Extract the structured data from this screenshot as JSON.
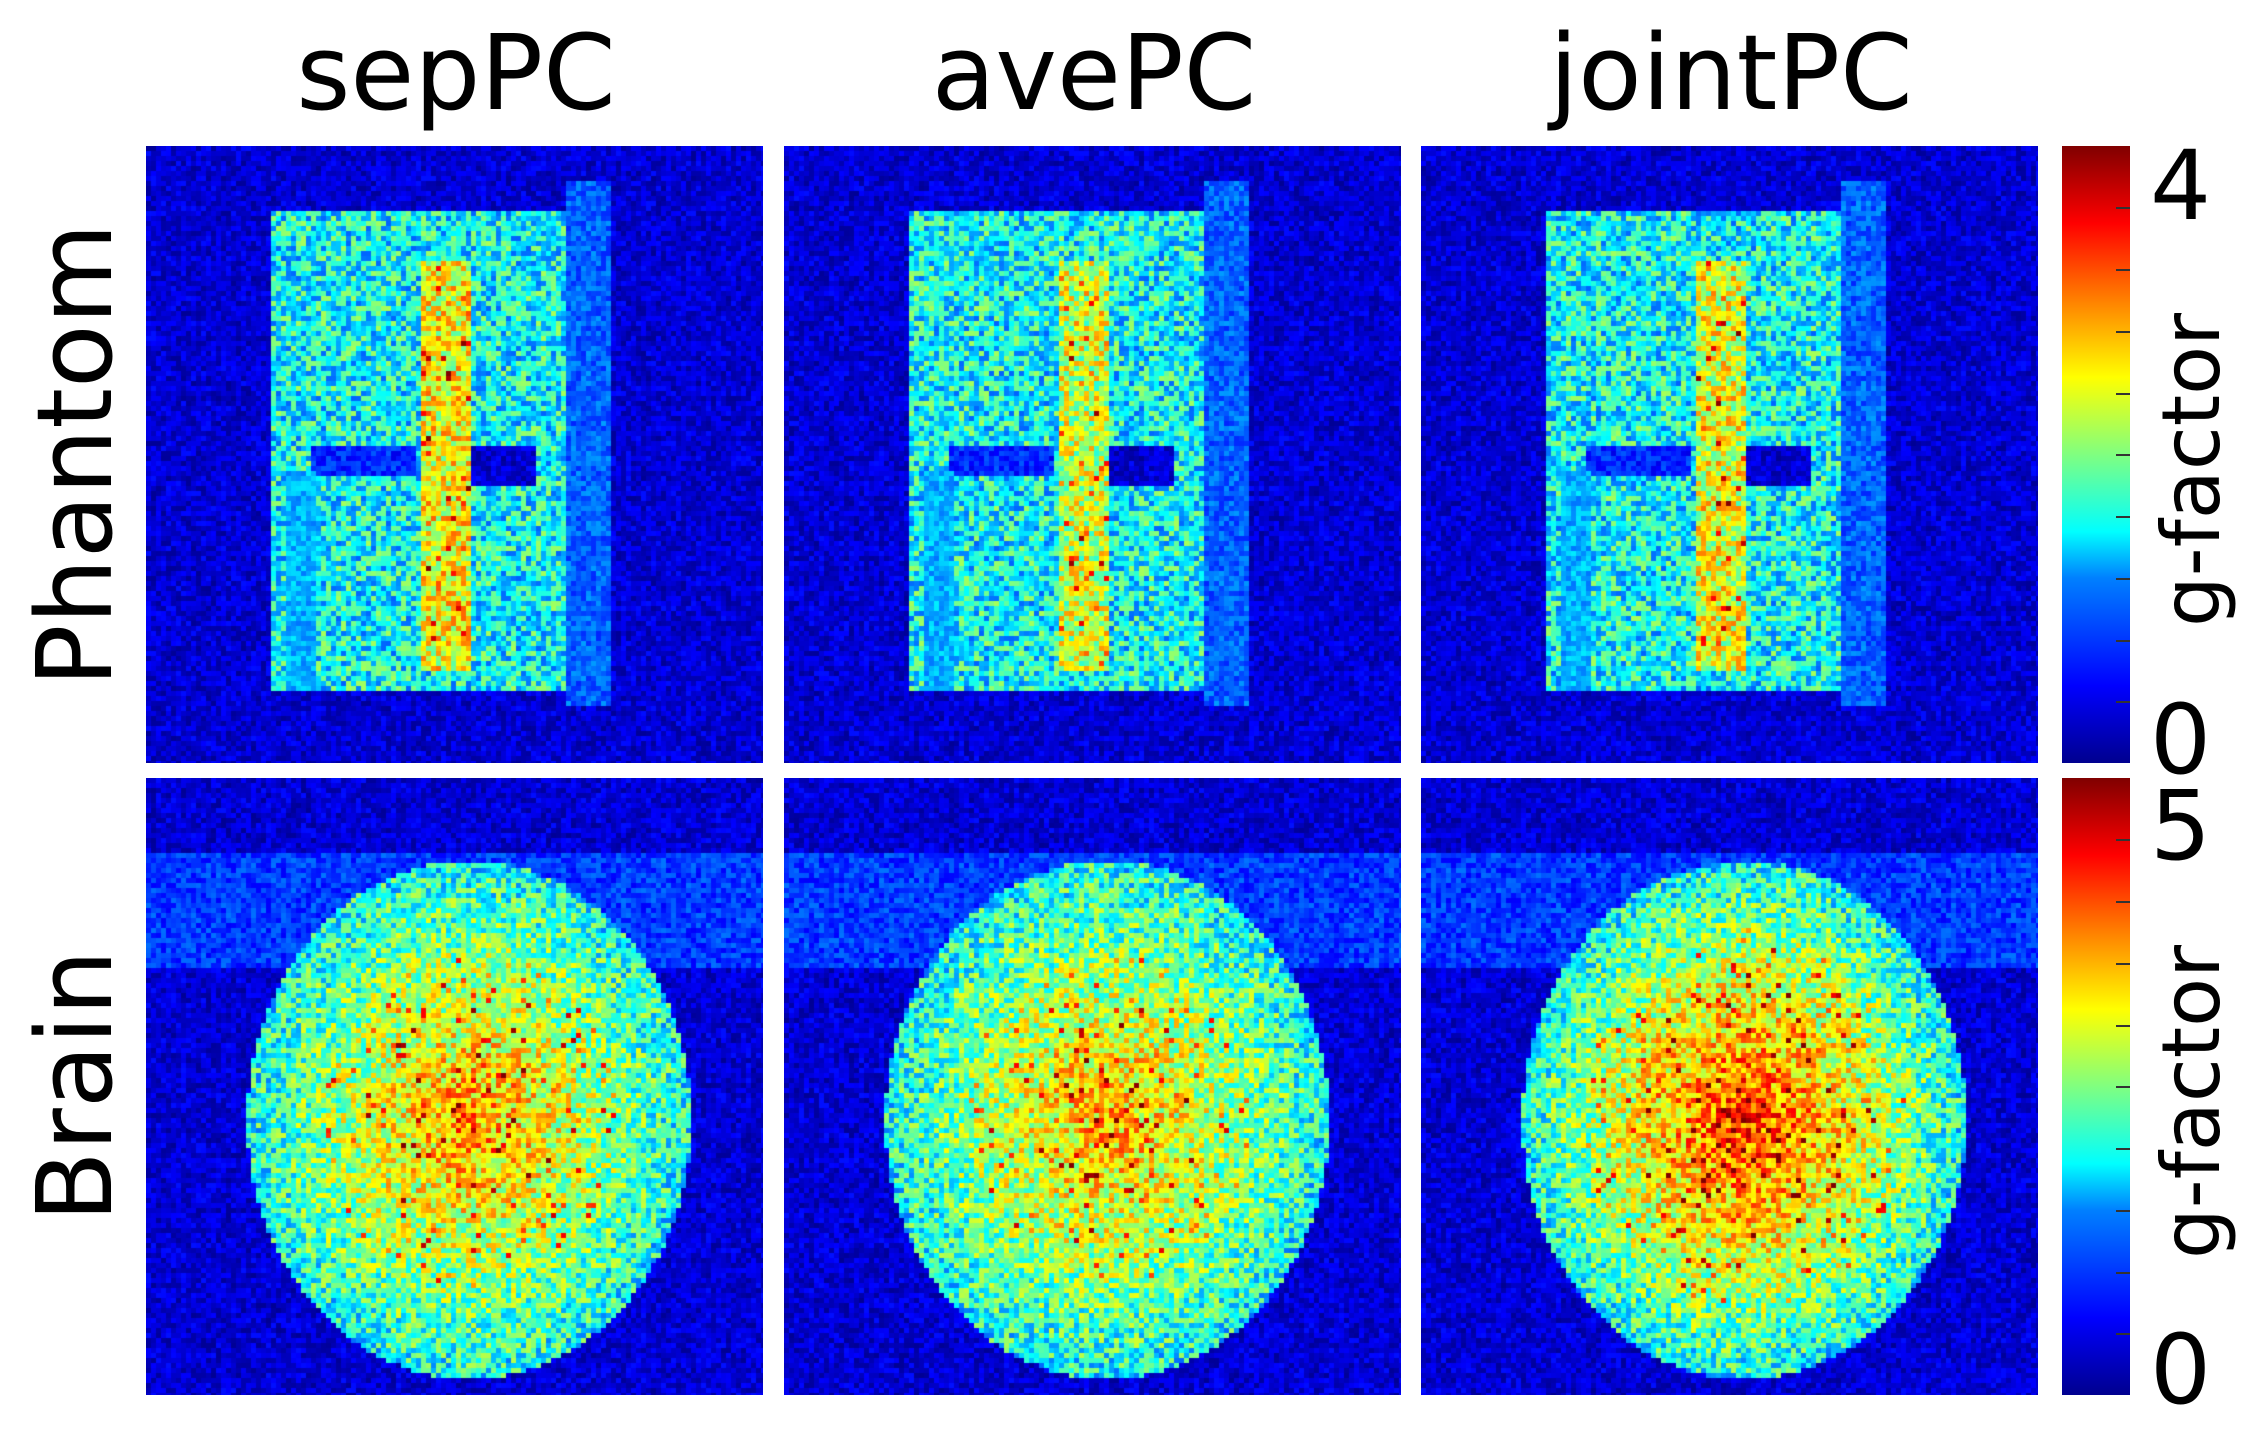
{
  "chart_data": {
    "type": "heatmap",
    "columns": [
      "sepPC",
      "avePC",
      "jointPC"
    ],
    "rows": [
      {
        "name": "Phantom",
        "colorbar": {
          "label": "g-factor",
          "min": 0,
          "max": 4,
          "min_label": "0",
          "max_label": "4"
        }
      },
      {
        "name": "Brain",
        "colorbar": {
          "label": "g-factor",
          "min": 0,
          "max": 5,
          "min_label": "0",
          "max_label": "5"
        }
      }
    ],
    "colormap": "jet"
  }
}
